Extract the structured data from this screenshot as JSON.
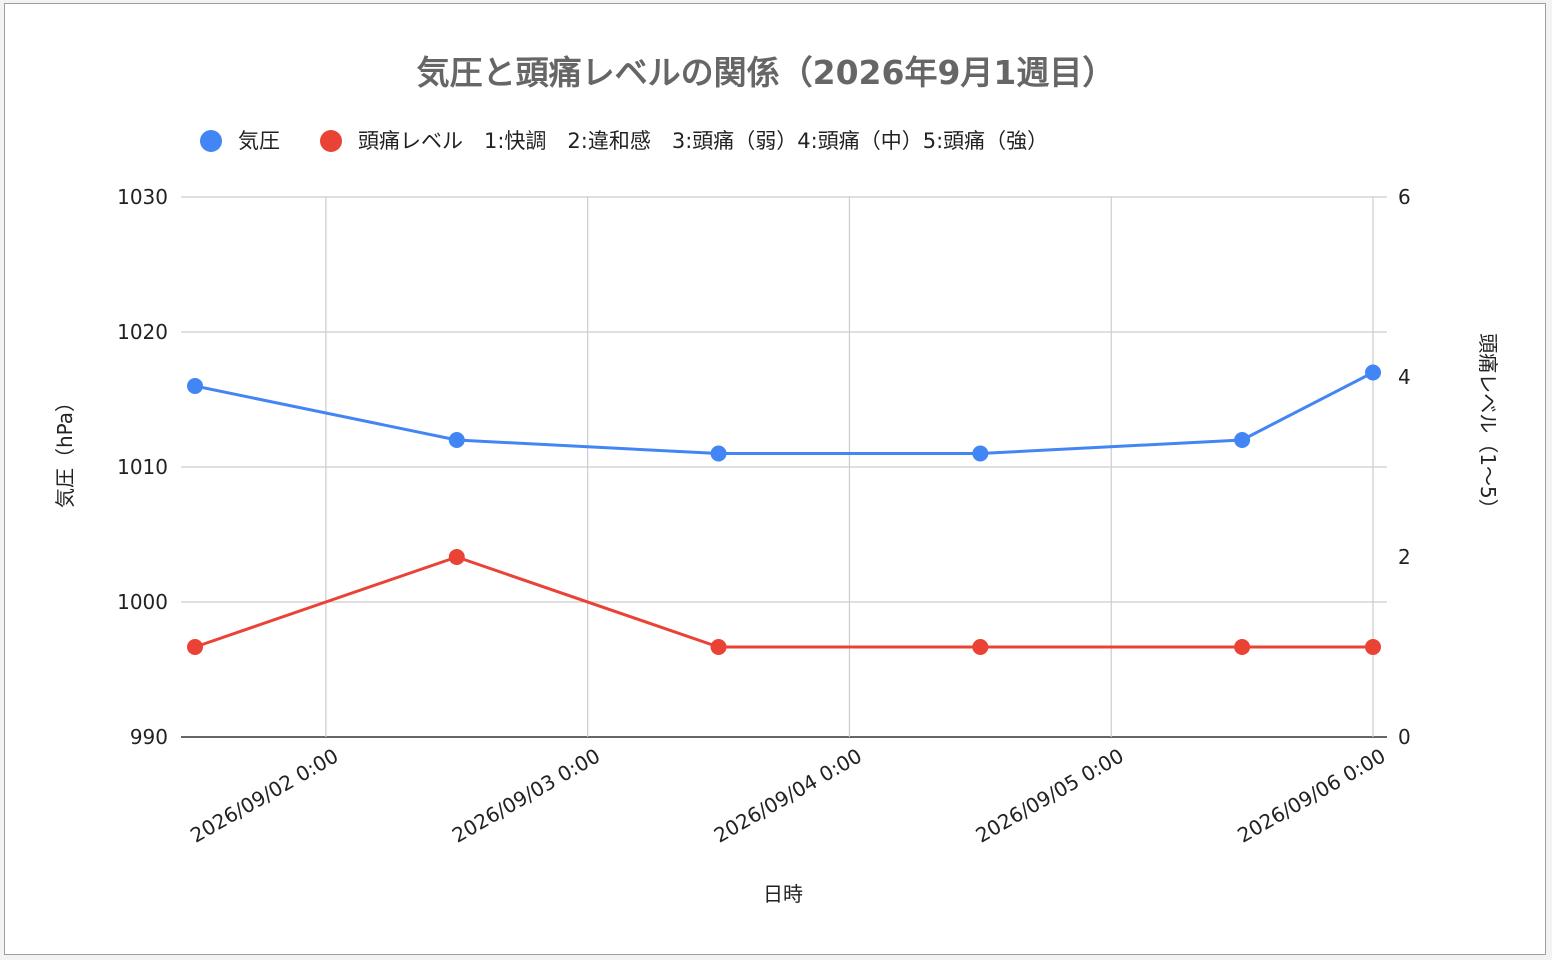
{
  "chart_data": {
    "type": "line",
    "title": "気圧と頭痛レベルの関係（2026年9月1週目）",
    "xlabel": "日時",
    "ylabel_left": "気圧（hPa）",
    "ylabel_right": "頭痛レベル（1〜5）",
    "x_ticks": [
      "2026/09/02 0:00",
      "2026/09/03 0:00",
      "2026/09/04 0:00",
      "2026/09/05 0:00",
      "2026/09/06 0:00"
    ],
    "x_range": [
      "2026-09-01T12:00",
      "2026-09-06T00:00"
    ],
    "y_left_ticks": [
      990,
      1000,
      1010,
      1020,
      1030
    ],
    "y_left_range": [
      990,
      1030
    ],
    "y_right_ticks": [
      0,
      2,
      4,
      6
    ],
    "y_right_range": [
      0,
      6
    ],
    "grid": true,
    "legend_position": "top-left",
    "series": [
      {
        "name": "気圧",
        "axis": "left",
        "color": "#4285f4",
        "points": [
          {
            "x": "2026-09-01T12:00",
            "y": 1016
          },
          {
            "x": "2026-09-02T12:00",
            "y": 1012
          },
          {
            "x": "2026-09-03T12:00",
            "y": 1011
          },
          {
            "x": "2026-09-04T12:00",
            "y": 1011
          },
          {
            "x": "2026-09-05T12:00",
            "y": 1012
          },
          {
            "x": "2026-09-06T00:00",
            "y": 1017
          }
        ]
      },
      {
        "name": "頭痛レベル　1:快調　2:違和感　3:頭痛（弱）4:頭痛（中）5:頭痛（強）",
        "axis": "right",
        "color": "#ea4335",
        "points": [
          {
            "x": "2026-09-01T12:00",
            "y": 1
          },
          {
            "x": "2026-09-02T12:00",
            "y": 2
          },
          {
            "x": "2026-09-03T12:00",
            "y": 1
          },
          {
            "x": "2026-09-04T12:00",
            "y": 1
          },
          {
            "x": "2026-09-05T12:00",
            "y": 1
          },
          {
            "x": "2026-09-06T00:00",
            "y": 1
          }
        ]
      }
    ]
  }
}
